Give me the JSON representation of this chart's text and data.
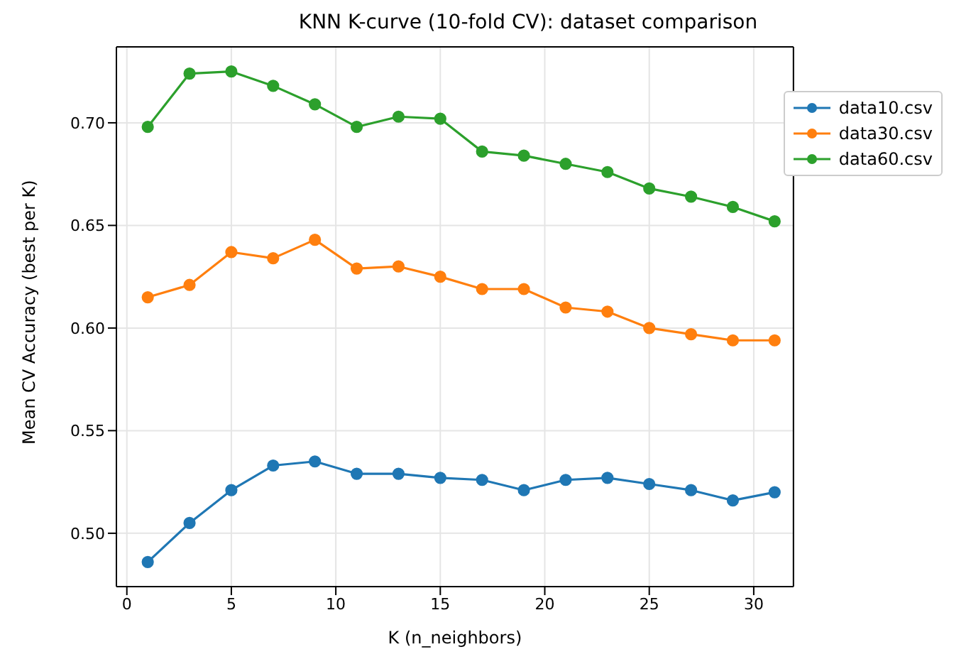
{
  "chart_data": {
    "type": "line",
    "title": "KNN K-curve (10-fold CV): dataset comparison",
    "xlabel": "K (n_neighbors)",
    "ylabel": "Mean CV Accuracy (best per K)",
    "x": [
      1,
      3,
      5,
      7,
      9,
      11,
      13,
      15,
      17,
      19,
      21,
      23,
      25,
      27,
      29,
      31
    ],
    "series": [
      {
        "name": "data10.csv",
        "color": "#1f77b4",
        "values": [
          0.486,
          0.505,
          0.521,
          0.533,
          0.535,
          0.529,
          0.529,
          0.527,
          0.526,
          0.521,
          0.526,
          0.527,
          0.524,
          0.521,
          0.516,
          0.52
        ]
      },
      {
        "name": "data30.csv",
        "color": "#ff7f0e",
        "values": [
          0.615,
          0.621,
          0.637,
          0.634,
          0.643,
          0.629,
          0.63,
          0.625,
          0.619,
          0.619,
          0.61,
          0.608,
          0.6,
          0.597,
          0.594,
          0.594
        ]
      },
      {
        "name": "data60.csv",
        "color": "#2ca02c",
        "values": [
          0.698,
          0.724,
          0.725,
          0.718,
          0.709,
          0.698,
          0.703,
          0.702,
          0.686,
          0.684,
          0.68,
          0.676,
          0.668,
          0.664,
          0.659,
          0.652
        ]
      }
    ],
    "xlim": [
      -0.5,
      31.9
    ],
    "xticks": [
      0,
      5,
      10,
      15,
      20,
      25,
      30
    ],
    "ylim": [
      0.474,
      0.737
    ],
    "yticks": [
      {
        "value": 0.5,
        "label": "0.50"
      },
      {
        "value": 0.55,
        "label": "0.55"
      },
      {
        "value": 0.6,
        "label": "0.60"
      },
      {
        "value": 0.65,
        "label": "0.65"
      },
      {
        "value": 0.7,
        "label": "0.70"
      }
    ],
    "grid": true,
    "legend": "top right",
    "marker": "circle",
    "line_style": "solid"
  }
}
